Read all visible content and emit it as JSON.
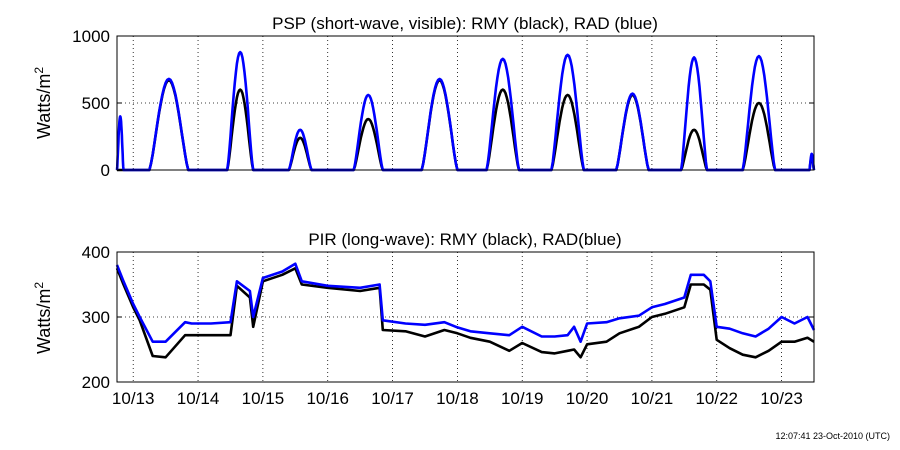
{
  "timestamp": "12:07:41 23-Oct-2010 (UTC)",
  "x_ticks": [
    "10/13",
    "10/14",
    "10/15",
    "10/16",
    "10/17",
    "10/18",
    "10/19",
    "10/20",
    "10/21",
    "10/22",
    "10/23"
  ],
  "colors": {
    "rmy": "#000000",
    "rad": "#0000ff"
  },
  "chart_data": [
    {
      "type": "line",
      "title": "PSP (short-wave, visible): RMY (black), RAD (blue)",
      "ylabel": "Watts/m",
      "ylabel_sup": "2",
      "ylim": [
        0,
        1000
      ],
      "xlim": [
        12.75,
        23.5
      ],
      "yticks": [
        "0",
        "500",
        "1000"
      ],
      "grid": true,
      "series": [
        {
          "name": "RMY",
          "color": "#000000",
          "peaks": [
            {
              "start": 13.25,
              "end": 13.85,
              "peak": 670
            },
            {
              "start": 14.45,
              "end": 14.85,
              "peak": 600
            },
            {
              "start": 15.4,
              "end": 15.75,
              "peak": 240
            },
            {
              "start": 16.4,
              "end": 16.85,
              "peak": 380
            },
            {
              "start": 17.45,
              "end": 18.0,
              "peak": 670
            },
            {
              "start": 18.45,
              "end": 18.95,
              "peak": 600
            },
            {
              "start": 19.45,
              "end": 19.95,
              "peak": 560
            },
            {
              "start": 20.45,
              "end": 20.95,
              "peak": 560
            },
            {
              "start": 21.45,
              "end": 21.85,
              "peak": 300
            },
            {
              "start": 22.4,
              "end": 22.9,
              "peak": 500
            },
            {
              "start": 23.43,
              "end": 23.5,
              "peak": 100
            }
          ]
        },
        {
          "name": "RAD",
          "color": "#0000ff",
          "peaks": [
            {
              "start": 12.75,
              "end": 12.85,
              "peak": 400
            },
            {
              "start": 13.25,
              "end": 13.85,
              "peak": 680
            },
            {
              "start": 14.45,
              "end": 14.85,
              "peak": 880
            },
            {
              "start": 15.4,
              "end": 15.75,
              "peak": 300
            },
            {
              "start": 16.4,
              "end": 16.85,
              "peak": 560
            },
            {
              "start": 17.45,
              "end": 18.0,
              "peak": 680
            },
            {
              "start": 18.45,
              "end": 18.95,
              "peak": 830
            },
            {
              "start": 19.45,
              "end": 19.95,
              "peak": 860
            },
            {
              "start": 20.45,
              "end": 20.95,
              "peak": 570
            },
            {
              "start": 21.45,
              "end": 21.85,
              "peak": 840
            },
            {
              "start": 22.4,
              "end": 22.9,
              "peak": 850
            },
            {
              "start": 23.43,
              "end": 23.5,
              "peak": 120
            }
          ]
        }
      ]
    },
    {
      "type": "line",
      "title": "PIR (long-wave): RMY (black), RAD(blue)",
      "ylabel": "Watts/m",
      "ylabel_sup": "2",
      "ylim": [
        200,
        400
      ],
      "xlim": [
        12.75,
        23.5
      ],
      "yticks": [
        "200",
        "300",
        "400"
      ],
      "grid": true,
      "series": [
        {
          "name": "RMY",
          "color": "#000000",
          "x": [
            12.75,
            12.85,
            13.0,
            13.1,
            13.3,
            13.5,
            13.8,
            13.9,
            14.2,
            14.5,
            14.6,
            14.8,
            14.85,
            15.0,
            15.3,
            15.5,
            15.6,
            16.0,
            16.5,
            16.8,
            16.85,
            17.2,
            17.5,
            17.8,
            18.0,
            18.2,
            18.5,
            18.8,
            19.0,
            19.3,
            19.5,
            19.7,
            19.8,
            19.9,
            20.0,
            20.3,
            20.5,
            20.8,
            21.0,
            21.2,
            21.5,
            21.6,
            21.8,
            21.9,
            22.0,
            22.2,
            22.4,
            22.6,
            22.8,
            23.0,
            23.2,
            23.4,
            23.5
          ],
          "y": [
            375,
            350,
            315,
            295,
            240,
            238,
            272,
            272,
            272,
            272,
            348,
            330,
            285,
            355,
            365,
            375,
            350,
            345,
            340,
            345,
            280,
            278,
            270,
            280,
            275,
            268,
            262,
            248,
            260,
            246,
            244,
            248,
            250,
            238,
            258,
            262,
            275,
            285,
            300,
            305,
            315,
            350,
            350,
            342,
            265,
            252,
            242,
            238,
            248,
            262,
            262,
            268,
            262
          ]
        },
        {
          "name": "RAD",
          "color": "#0000ff",
          "x": [
            12.75,
            12.85,
            13.0,
            13.1,
            13.3,
            13.5,
            13.8,
            13.9,
            14.2,
            14.5,
            14.6,
            14.8,
            14.85,
            15.0,
            15.3,
            15.5,
            15.6,
            16.0,
            16.5,
            16.8,
            16.85,
            17.2,
            17.5,
            17.8,
            18.0,
            18.2,
            18.5,
            18.8,
            19.0,
            19.3,
            19.5,
            19.7,
            19.8,
            19.9,
            20.0,
            20.3,
            20.5,
            20.8,
            21.0,
            21.2,
            21.5,
            21.6,
            21.8,
            21.9,
            22.0,
            22.2,
            22.4,
            22.6,
            22.8,
            23.0,
            23.2,
            23.4,
            23.5
          ],
          "y": [
            380,
            355,
            320,
            300,
            262,
            262,
            292,
            290,
            290,
            292,
            355,
            340,
            300,
            360,
            370,
            382,
            355,
            348,
            345,
            350,
            295,
            290,
            288,
            292,
            284,
            278,
            275,
            272,
            285,
            270,
            270,
            272,
            285,
            262,
            290,
            292,
            298,
            302,
            315,
            320,
            330,
            365,
            365,
            355,
            285,
            282,
            275,
            270,
            282,
            300,
            290,
            300,
            280
          ]
        }
      ]
    }
  ]
}
